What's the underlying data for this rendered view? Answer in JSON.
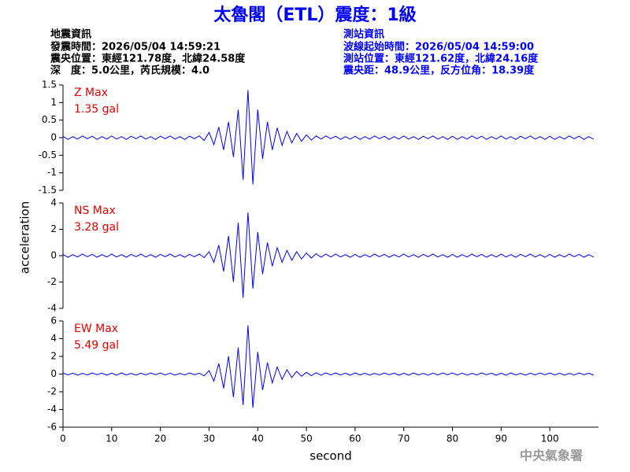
{
  "title": "太魯閣（ETL）震度：1級",
  "earthquake_info": [
    "地震資訊",
    "發震時間：2026/05/04 14:59:21",
    "震央位置：東經121.78度，北緯24.58度",
    "深　度：5.0公里，芮氏規模：4.0"
  ],
  "station_info": [
    "測站資訊",
    "波線起始時間：2026/05/04 14:59:00",
    "測站位置：東經121.62度，北緯24.16度",
    "震央距：48.9公里，反方位角：18.39度"
  ],
  "y_label": "acceleration",
  "watermark": "中央氣象署",
  "chart_data": [
    {
      "type": "line",
      "annotations": [
        "Z Max",
        "1.35 gal"
      ],
      "color": "#0000ff",
      "xlim": [
        0,
        110
      ],
      "ylim": [
        -1.5,
        1.5
      ],
      "yticks": [
        -1.5,
        -1,
        -0.5,
        0,
        0.5,
        1,
        1.5
      ],
      "x": [
        0,
        1,
        2,
        3,
        4,
        5,
        6,
        7,
        8,
        9,
        10,
        11,
        12,
        13,
        14,
        15,
        16,
        17,
        18,
        19,
        20,
        21,
        22,
        23,
        24,
        25,
        26,
        27,
        28,
        29,
        30,
        31,
        32,
        33,
        34,
        35,
        36,
        37,
        38,
        39,
        40,
        41,
        42,
        43,
        44,
        45,
        46,
        47,
        48,
        49,
        50,
        51,
        52,
        53,
        54,
        55,
        56,
        57,
        58,
        59,
        60,
        61,
        62,
        63,
        64,
        65,
        66,
        67,
        68,
        69,
        70,
        71,
        72,
        73,
        74,
        75,
        76,
        77,
        78,
        79,
        80,
        81,
        82,
        83,
        84,
        85,
        86,
        87,
        88,
        89,
        90,
        91,
        92,
        93,
        94,
        95,
        96,
        97,
        98,
        99,
        100,
        101,
        102,
        103,
        104,
        105,
        106,
        107,
        108,
        109
      ],
      "values": [
        0.04,
        -0.05,
        0.03,
        -0.04,
        0.05,
        -0.03,
        0.04,
        -0.05,
        0.03,
        -0.04,
        0.05,
        -0.04,
        0.03,
        -0.05,
        0.04,
        -0.03,
        0.05,
        -0.04,
        0.03,
        -0.05,
        0.04,
        -0.03,
        0.05,
        -0.04,
        0.03,
        -0.05,
        0.04,
        -0.03,
        0.05,
        -0.08,
        0.15,
        -0.2,
        0.3,
        -0.35,
        0.45,
        -0.55,
        0.8,
        -1.2,
        1.35,
        -1.33,
        0.8,
        -0.6,
        0.45,
        -0.35,
        0.28,
        -0.22,
        0.18,
        -0.15,
        0.12,
        -0.1,
        0.08,
        -0.07,
        0.05,
        -0.04,
        0.05,
        -0.03,
        0.04,
        -0.05,
        0.03,
        -0.04,
        0.04,
        -0.05,
        0.03,
        -0.04,
        0.05,
        -0.03,
        0.04,
        -0.05,
        0.03,
        -0.04,
        0.05,
        -0.04,
        0.03,
        -0.05,
        0.04,
        -0.03,
        0.05,
        -0.04,
        0.03,
        -0.05,
        0.04,
        -0.05,
        0.03,
        -0.04,
        0.05,
        -0.03,
        0.04,
        -0.05,
        0.03,
        -0.04,
        0.05,
        -0.04,
        0.03,
        -0.05,
        0.04,
        -0.03,
        0.05,
        -0.04,
        0.03,
        -0.05,
        0.04,
        -0.05,
        0.03,
        -0.04,
        0.05,
        -0.03,
        0.04,
        -0.05,
        0.03,
        -0.04
      ]
    },
    {
      "type": "line",
      "annotations": [
        "NS Max",
        "3.28 gal"
      ],
      "color": "#0000ff",
      "xlim": [
        0,
        110
      ],
      "ylim": [
        -4,
        4
      ],
      "yticks": [
        -4,
        -2,
        0,
        2,
        4
      ],
      "x": [
        0,
        1,
        2,
        3,
        4,
        5,
        6,
        7,
        8,
        9,
        10,
        11,
        12,
        13,
        14,
        15,
        16,
        17,
        18,
        19,
        20,
        21,
        22,
        23,
        24,
        25,
        26,
        27,
        28,
        29,
        30,
        31,
        32,
        33,
        34,
        35,
        36,
        37,
        38,
        39,
        40,
        41,
        42,
        43,
        44,
        45,
        46,
        47,
        48,
        49,
        50,
        51,
        52,
        53,
        54,
        55,
        56,
        57,
        58,
        59,
        60,
        61,
        62,
        63,
        64,
        65,
        66,
        67,
        68,
        69,
        70,
        71,
        72,
        73,
        74,
        75,
        76,
        77,
        78,
        79,
        80,
        81,
        82,
        83,
        84,
        85,
        86,
        87,
        88,
        89,
        90,
        91,
        92,
        93,
        94,
        95,
        96,
        97,
        98,
        99,
        100,
        101,
        102,
        103,
        104,
        105,
        106,
        107,
        108,
        109
      ],
      "values": [
        0.1,
        -0.12,
        0.08,
        -0.1,
        0.12,
        -0.08,
        0.1,
        -0.12,
        0.08,
        -0.1,
        0.12,
        -0.1,
        0.08,
        -0.12,
        0.1,
        -0.08,
        0.12,
        -0.1,
        0.08,
        -0.12,
        0.1,
        -0.08,
        0.12,
        -0.1,
        0.08,
        -0.12,
        0.1,
        -0.08,
        0.12,
        -0.15,
        0.3,
        -0.5,
        0.8,
        -1.2,
        1.5,
        -2.0,
        2.5,
        -3.2,
        3.28,
        -2.5,
        1.8,
        -1.4,
        1.0,
        -0.8,
        0.6,
        -0.5,
        0.4,
        -0.35,
        0.3,
        -0.25,
        0.2,
        -0.18,
        0.15,
        -0.12,
        0.12,
        -0.1,
        0.12,
        -0.1,
        0.08,
        -0.12,
        0.1,
        -0.12,
        0.08,
        -0.1,
        0.12,
        -0.08,
        0.1,
        -0.12,
        0.08,
        -0.1,
        0.12,
        -0.1,
        0.08,
        -0.12,
        0.1,
        -0.08,
        0.12,
        -0.1,
        0.08,
        -0.12,
        0.1,
        -0.12,
        0.08,
        -0.1,
        0.12,
        -0.08,
        0.1,
        -0.12,
        0.08,
        -0.1,
        0.12,
        -0.1,
        0.08,
        -0.12,
        0.1,
        -0.08,
        0.12,
        -0.1,
        0.08,
        -0.12,
        0.1,
        -0.12,
        0.08,
        -0.1,
        0.12,
        -0.08,
        0.1,
        -0.12,
        0.08,
        -0.1
      ]
    },
    {
      "type": "line",
      "annotations": [
        "EW Max",
        "5.49 gal"
      ],
      "color": "#0000ff",
      "x_label": "second",
      "xlim": [
        0,
        110
      ],
      "xticks": [
        0,
        10,
        20,
        30,
        40,
        50,
        60,
        70,
        80,
        90,
        100
      ],
      "ylim": [
        -6,
        6
      ],
      "yticks": [
        -6,
        -4,
        -2,
        0,
        2,
        4,
        6
      ],
      "x": [
        0,
        1,
        2,
        3,
        4,
        5,
        6,
        7,
        8,
        9,
        10,
        11,
        12,
        13,
        14,
        15,
        16,
        17,
        18,
        19,
        20,
        21,
        22,
        23,
        24,
        25,
        26,
        27,
        28,
        29,
        30,
        31,
        32,
        33,
        34,
        35,
        36,
        37,
        38,
        39,
        40,
        41,
        42,
        43,
        44,
        45,
        46,
        47,
        48,
        49,
        50,
        51,
        52,
        53,
        54,
        55,
        56,
        57,
        58,
        59,
        60,
        61,
        62,
        63,
        64,
        65,
        66,
        67,
        68,
        69,
        70,
        71,
        72,
        73,
        74,
        75,
        76,
        77,
        78,
        79,
        80,
        81,
        82,
        83,
        84,
        85,
        86,
        87,
        88,
        89,
        90,
        91,
        92,
        93,
        94,
        95,
        96,
        97,
        98,
        99,
        100,
        101,
        102,
        103,
        104,
        105,
        106,
        107,
        108,
        109
      ],
      "values": [
        0.12,
        -0.1,
        0.1,
        -0.12,
        0.08,
        -0.1,
        0.12,
        -0.08,
        0.1,
        -0.12,
        0.1,
        -0.12,
        0.12,
        -0.1,
        0.08,
        -0.12,
        0.1,
        -0.1,
        0.12,
        -0.08,
        0.12,
        -0.1,
        0.1,
        -0.12,
        0.08,
        -0.1,
        0.12,
        -0.08,
        0.1,
        -0.2,
        0.4,
        -0.8,
        1.2,
        -1.6,
        2.0,
        -2.6,
        3.0,
        -3.5,
        5.49,
        -3.8,
        2.5,
        -1.8,
        1.3,
        -1.0,
        0.8,
        -0.6,
        0.5,
        -0.4,
        0.3,
        -0.25,
        0.2,
        -0.18,
        0.15,
        -0.12,
        0.12,
        -0.1,
        0.12,
        -0.1,
        0.1,
        -0.12,
        0.12,
        -0.1,
        0.1,
        -0.12,
        0.08,
        -0.1,
        0.12,
        -0.08,
        0.1,
        -0.12,
        0.1,
        -0.12,
        0.12,
        -0.1,
        0.08,
        -0.12,
        0.1,
        -0.1,
        0.12,
        -0.08,
        0.12,
        -0.1,
        0.1,
        -0.12,
        0.08,
        -0.1,
        0.12,
        -0.08,
        0.1,
        -0.12,
        0.1,
        -0.12,
        0.12,
        -0.1,
        0.08,
        -0.12,
        0.1,
        -0.1,
        0.12,
        -0.08,
        0.12,
        -0.1,
        0.1,
        -0.12,
        0.08,
        -0.1,
        0.12,
        -0.08,
        0.1,
        -0.12
      ]
    }
  ]
}
